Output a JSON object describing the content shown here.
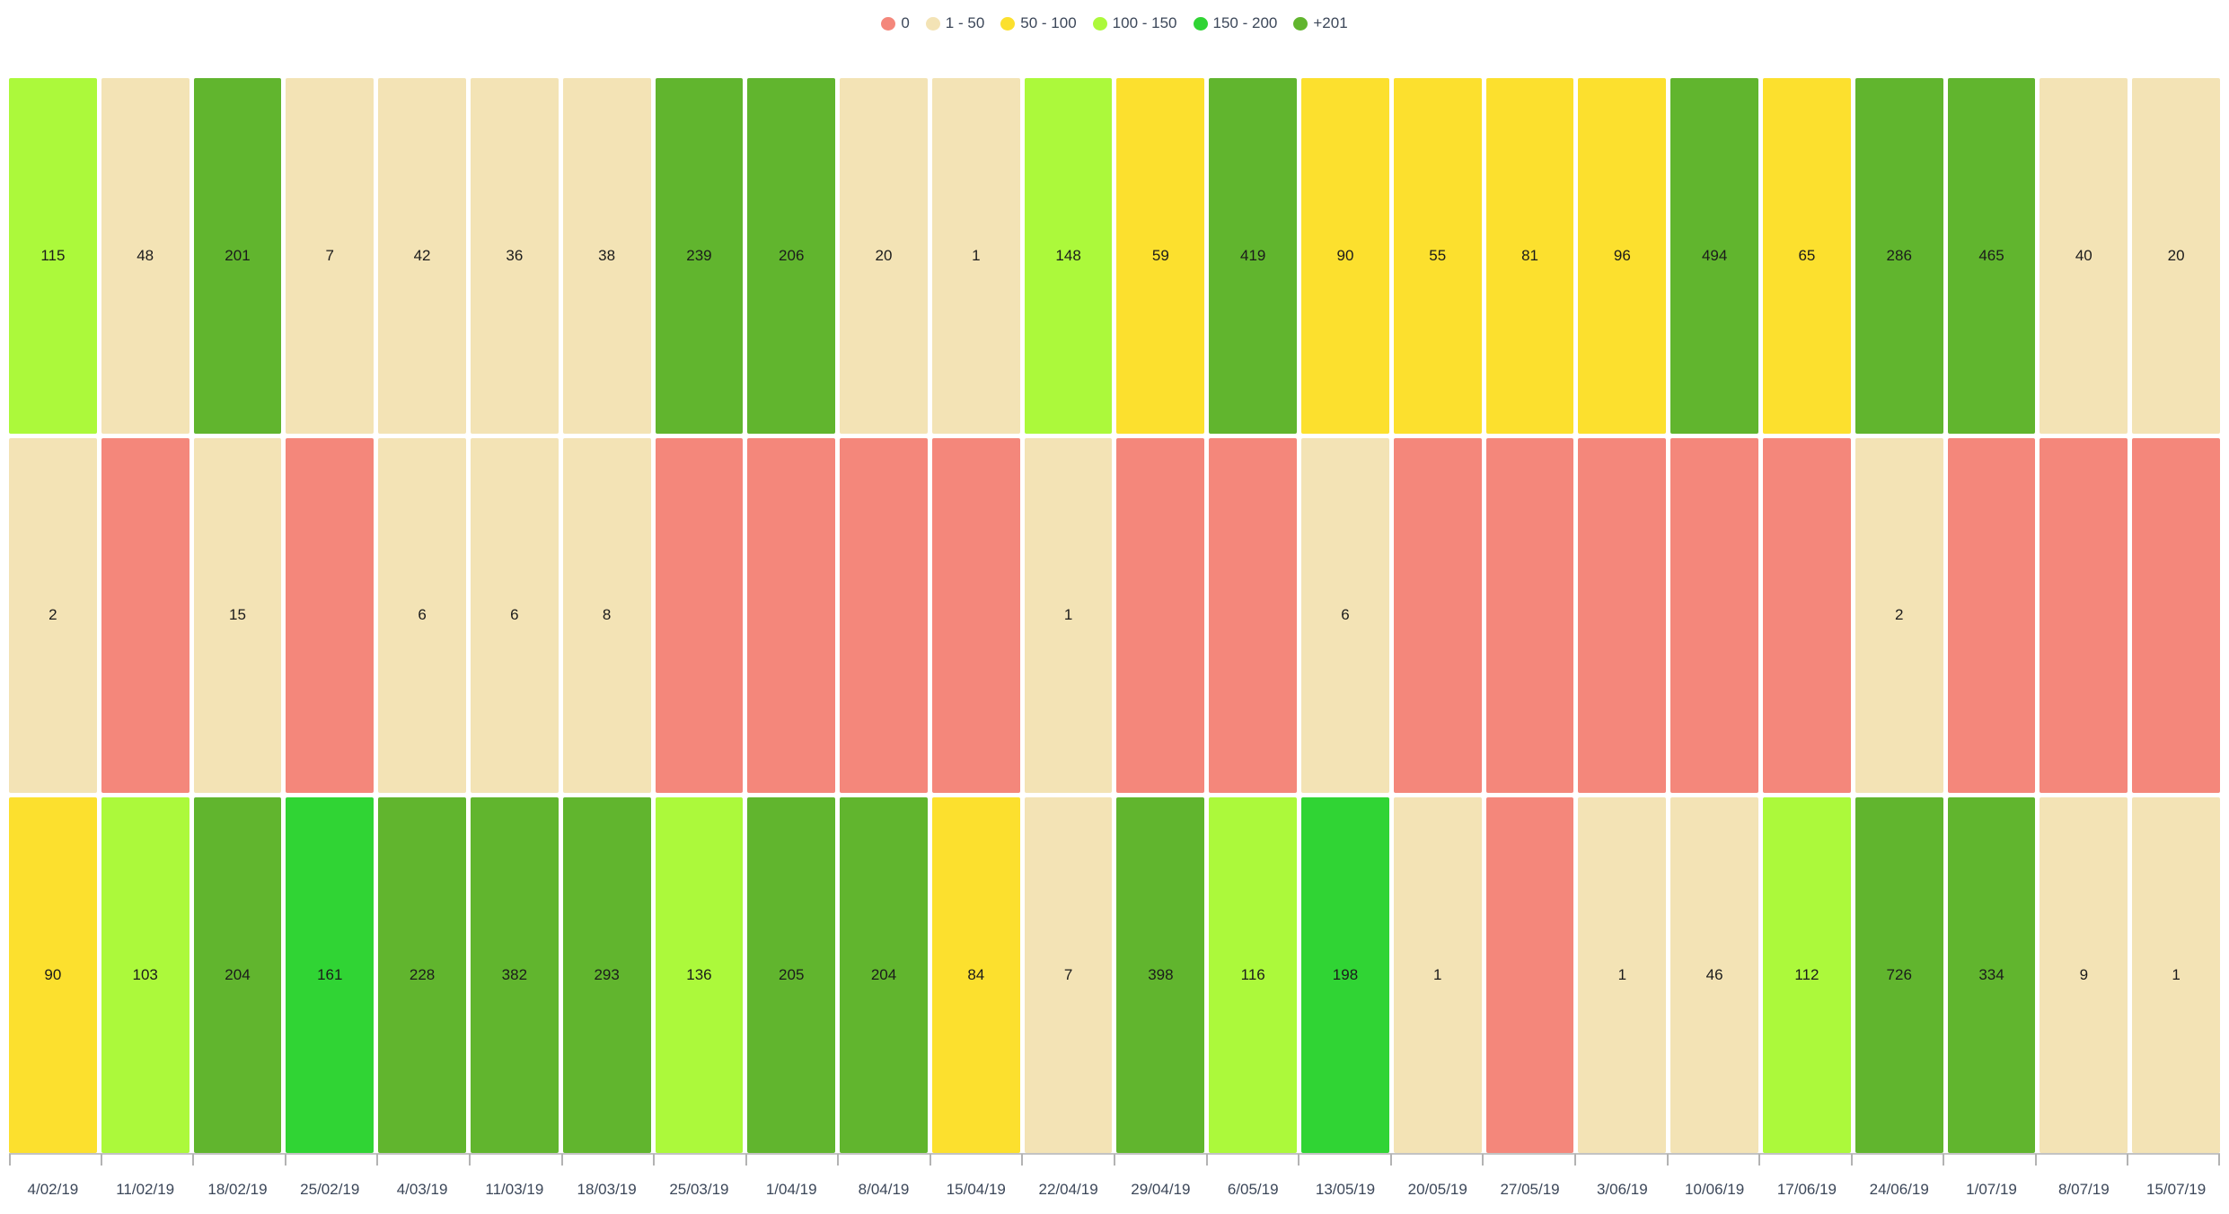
{
  "chart_data": {
    "type": "heatmap",
    "title": "",
    "legend_position": "top",
    "grid": "off",
    "categories": [
      "4/02/19",
      "11/02/19",
      "18/02/19",
      "25/02/19",
      "4/03/19",
      "11/03/19",
      "18/03/19",
      "25/03/19",
      "1/04/19",
      "8/04/19",
      "15/04/19",
      "22/04/19",
      "29/04/19",
      "6/05/19",
      "13/05/19",
      "20/05/19",
      "27/05/19",
      "3/06/19",
      "10/06/19",
      "17/06/19",
      "24/06/19",
      "1/07/19",
      "8/07/19",
      "15/07/19"
    ],
    "series": [
      {
        "name": "row-top",
        "values": [
          115,
          48,
          201,
          7,
          42,
          36,
          38,
          239,
          206,
          20,
          1,
          148,
          59,
          419,
          90,
          55,
          81,
          96,
          494,
          65,
          286,
          465,
          40,
          20
        ]
      },
      {
        "name": "row-middle",
        "values": [
          2,
          0,
          15,
          0,
          6,
          6,
          8,
          0,
          0,
          0,
          0,
          1,
          0,
          0,
          6,
          0,
          0,
          0,
          0,
          0,
          2,
          0,
          0,
          0
        ]
      },
      {
        "name": "row-bottom",
        "values": [
          90,
          103,
          204,
          161,
          228,
          382,
          293,
          136,
          205,
          204,
          84,
          7,
          398,
          116,
          198,
          1,
          0,
          1,
          46,
          112,
          726,
          334,
          9,
          1
        ]
      }
    ],
    "zero_labels_hidden": true,
    "color_scale": [
      {
        "label": "0",
        "max": 0,
        "color": "#F4877B"
      },
      {
        "label": "1 - 50",
        "max": 49,
        "color": "#F3E3B5"
      },
      {
        "label": "50 - 100",
        "max": 99,
        "color": "#FCE02E"
      },
      {
        "label": "100 - 150",
        "max": 149,
        "color": "#ACF93B"
      },
      {
        "label": "150 - 200",
        "max": 200,
        "color": "#30D434"
      },
      {
        "label": "+201",
        "max": null,
        "color": "#61B52E"
      }
    ]
  }
}
